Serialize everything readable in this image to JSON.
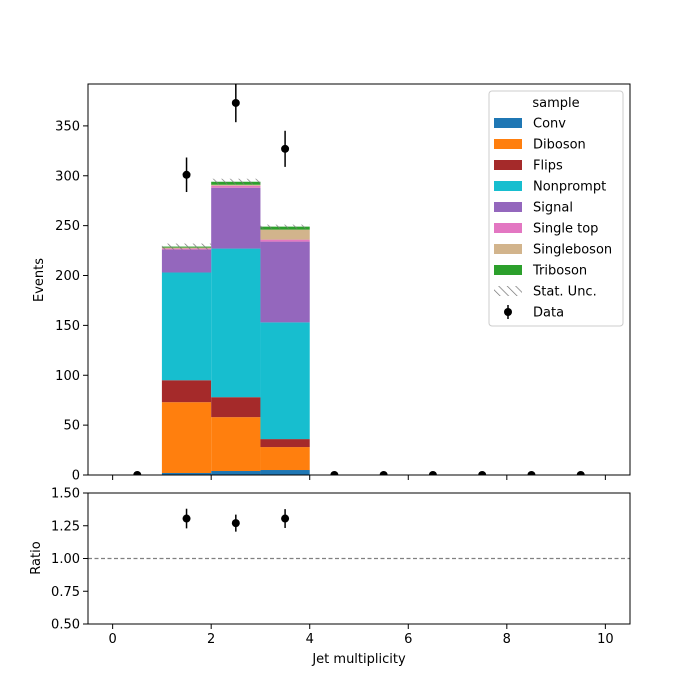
{
  "chart_data": {
    "type": "bar",
    "subtype": "stacked-histogram-with-ratio",
    "bin_edges": [
      0,
      1,
      2,
      3,
      4,
      5,
      6,
      7,
      8,
      9,
      10
    ],
    "bin_centers": [
      0.5,
      1.5,
      2.5,
      3.5,
      4.5,
      5.5,
      6.5,
      7.5,
      8.5,
      9.5
    ],
    "xlabel": "Jet multiplicity",
    "ylabel": "Events",
    "ratio_ylabel": "Ratio",
    "xlim": [
      -0.5,
      10.5
    ],
    "ylim": [
      0,
      392
    ],
    "ratio_ylim": [
      0.5,
      1.5
    ],
    "ratio_reference": 1.0,
    "x_ticks": [
      "0",
      "2",
      "4",
      "6",
      "8",
      "10"
    ],
    "y_ticks": [
      "0",
      "50",
      "100",
      "150",
      "200",
      "250",
      "300",
      "350"
    ],
    "ratio_y_ticks": [
      "0.50",
      "0.75",
      "1.00",
      "1.25",
      "1.50"
    ],
    "legend_title": "sample",
    "legend_position": "top-right",
    "series": [
      {
        "name": "Conv",
        "color": "#1f77b4",
        "values": [
          0,
          2,
          4,
          5,
          0,
          0,
          0,
          0,
          0,
          0
        ]
      },
      {
        "name": "Diboson",
        "color": "#ff7f0e",
        "values": [
          0,
          71,
          54,
          23,
          0,
          0,
          0,
          0,
          0,
          0
        ]
      },
      {
        "name": "Flips",
        "color": "#a52a2a",
        "values": [
          0,
          22,
          20,
          8,
          0,
          0,
          0,
          0,
          0,
          0
        ]
      },
      {
        "name": "Nonprompt",
        "color": "#17becf",
        "values": [
          0,
          108,
          149,
          117,
          0,
          0,
          0,
          0,
          0,
          0
        ]
      },
      {
        "name": "Signal",
        "color": "#9467bd",
        "values": [
          0,
          23,
          61,
          81,
          0,
          0,
          0,
          0,
          0,
          0
        ]
      },
      {
        "name": "Single top",
        "color": "#e377c2",
        "values": [
          0,
          1,
          2,
          2,
          0,
          0,
          0,
          0,
          0,
          0
        ]
      },
      {
        "name": "Singleboson",
        "color": "#d2b48c",
        "values": [
          0,
          1,
          1,
          10,
          0,
          0,
          0,
          0,
          0,
          0
        ]
      },
      {
        "name": "Triboson",
        "color": "#2ca02c",
        "values": [
          0,
          1,
          3,
          3,
          0,
          0,
          0,
          0,
          0,
          0
        ]
      }
    ],
    "stat_unc": {
      "name": "Stat. Unc.",
      "values": [
        0,
        3,
        3,
        2,
        0,
        0,
        0,
        0,
        0,
        0
      ]
    },
    "data": {
      "name": "Data",
      "values": [
        0,
        301,
        373,
        327,
        0,
        0,
        0,
        0,
        0,
        0
      ],
      "errors": [
        0,
        17.3,
        19.3,
        18.1,
        0,
        0,
        0,
        0,
        0,
        0
      ]
    },
    "ratio": {
      "bins": [
        1.5,
        2.5,
        3.5
      ],
      "values": [
        1.305,
        1.27,
        1.305
      ],
      "errors": [
        0.075,
        0.065,
        0.072
      ]
    }
  }
}
